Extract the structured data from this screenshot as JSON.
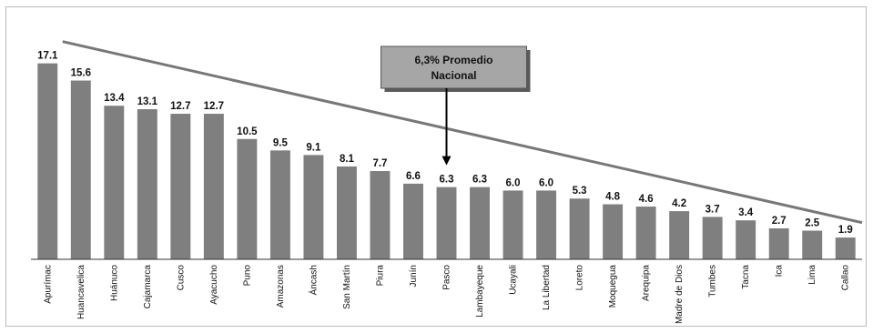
{
  "chart_data": {
    "type": "bar",
    "categories": [
      "Apurímac",
      "Huancavelica",
      "Huánuco",
      "Cajamarca",
      "Cusco",
      "Ayacucho",
      "Puno",
      "Amazonas",
      "Áncash",
      "San Martín",
      "Piura",
      "Junín",
      "Pasco",
      "Lambayeque",
      "Ucayali",
      "La Libertad",
      "Loreto",
      "Moquegua",
      "Arequipa",
      "Madre de Dios",
      "Tumbes",
      "Tacna",
      "Ica",
      "Lima",
      "Callao"
    ],
    "values": [
      17.1,
      15.6,
      13.4,
      13.1,
      12.7,
      12.7,
      10.5,
      9.5,
      9.1,
      8.1,
      7.7,
      6.6,
      6.3,
      6.3,
      6.0,
      6.0,
      5.3,
      4.8,
      4.6,
      4.2,
      3.7,
      3.4,
      2.7,
      2.5,
      1.9
    ],
    "labels": [
      "17.1",
      "15.6",
      "13.4",
      "13.1",
      "12.7",
      "12.7",
      "10.5",
      "9.5",
      "9.1",
      "8.1",
      "7.7",
      "6.6",
      "6.3",
      "6.3",
      "6.0",
      "6.0",
      "5.3",
      "4.8",
      "4.6",
      "4.2",
      "3.7",
      "3.4",
      "2.7",
      "2.5",
      "1.9"
    ],
    "ylim": [
      0,
      18.5
    ],
    "bar_color": "#7f7f7f",
    "trend_line": {
      "from_value": 19.0,
      "to_value": 3.2,
      "color": "#777777"
    },
    "annotation": {
      "lines": [
        "6,3% Promedio",
        "Nacional"
      ],
      "points_to": "Pasco",
      "box_color": "#a6a6a6"
    }
  }
}
